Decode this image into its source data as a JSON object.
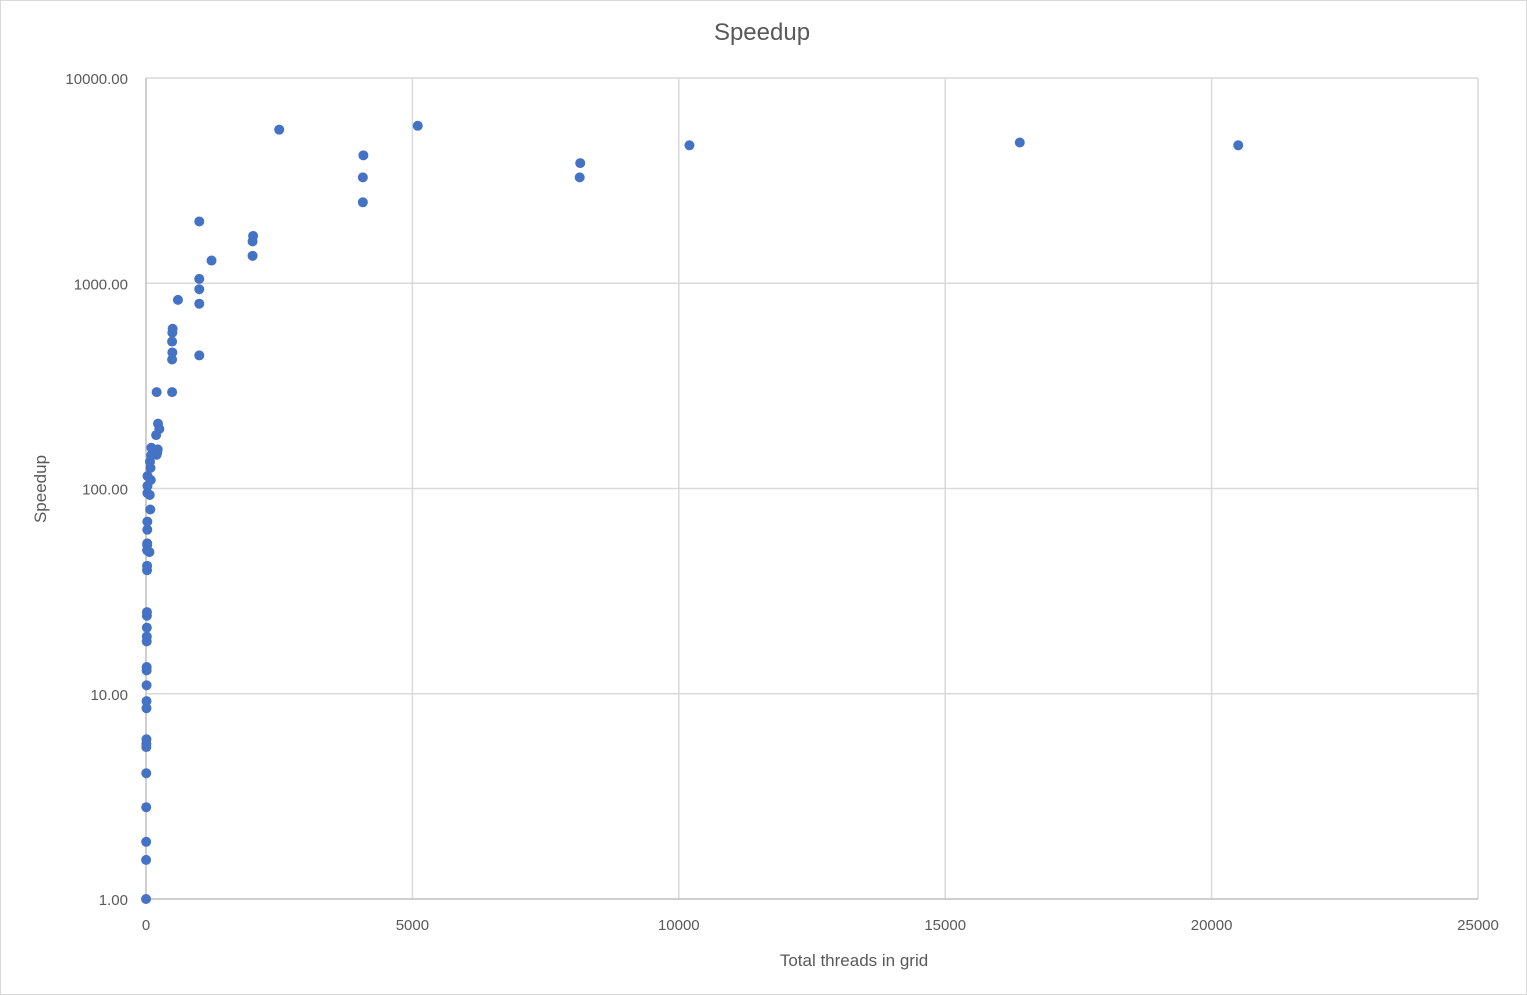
{
  "chart_data": {
    "type": "scatter",
    "title": "Speedup",
    "xlabel": "Total threads in grid",
    "ylabel": "Speedup",
    "xlim": [
      0,
      25000
    ],
    "ylim": [
      1,
      10000
    ],
    "y_scale": "log",
    "x_ticks": [
      "0",
      "5000",
      "10000",
      "15000",
      "20000",
      "25000"
    ],
    "y_ticks": [
      "1.00",
      "10.00",
      "100.00",
      "1000.00",
      "10000.00"
    ],
    "grid": true,
    "marker_color": "#4472C4",
    "series": [
      {
        "points": [
          [
            1,
            1.0
          ],
          [
            2,
            1.55
          ],
          [
            3,
            1.9
          ],
          [
            4,
            2.8
          ],
          [
            5,
            4.1
          ],
          [
            6,
            5.5
          ],
          [
            7,
            5.7
          ],
          [
            8,
            6.0
          ],
          [
            9,
            8.5
          ],
          [
            10,
            9.2
          ],
          [
            11,
            11.0
          ],
          [
            12,
            13.0
          ],
          [
            13,
            13.5
          ],
          [
            14,
            18.0
          ],
          [
            15,
            19.0
          ],
          [
            16,
            21.0
          ],
          [
            17,
            24.0
          ],
          [
            18,
            25.0
          ],
          [
            19,
            40.0
          ],
          [
            20,
            42.0
          ],
          [
            21,
            50.0
          ],
          [
            22,
            53.0
          ],
          [
            23,
            54.0
          ],
          [
            24,
            63.0
          ],
          [
            25,
            69.0
          ],
          [
            26,
            95.0
          ],
          [
            27,
            103.0
          ],
          [
            28,
            115.0
          ],
          [
            64,
            49.0
          ],
          [
            80,
            79.0
          ],
          [
            70,
            93.0
          ],
          [
            90,
            110.0
          ],
          [
            85,
            126.0
          ],
          [
            75,
            135.0
          ],
          [
            95,
            145.0
          ],
          [
            100,
            158.0
          ],
          [
            200,
            146.0
          ],
          [
            210,
            150.0
          ],
          [
            220,
            155.0
          ],
          [
            190,
            182.0
          ],
          [
            225,
            207.0
          ],
          [
            250,
            195.0
          ],
          [
            200,
            295.0
          ],
          [
            490,
            295.0
          ],
          [
            490,
            425.0
          ],
          [
            495,
            460.0
          ],
          [
            490,
            520.0
          ],
          [
            495,
            575.0
          ],
          [
            500,
            600.0
          ],
          [
            600,
            830.0
          ],
          [
            1000,
            445.0
          ],
          [
            1000,
            795.0
          ],
          [
            1000,
            935.0
          ],
          [
            1000,
            1050.0
          ],
          [
            1000,
            2000.0
          ],
          [
            1230,
            1290.0
          ],
          [
            2000,
            1360.0
          ],
          [
            2000,
            1600.0
          ],
          [
            2010,
            1700.0
          ],
          [
            2500,
            5600.0
          ],
          [
            4070,
            2480.0
          ],
          [
            4070,
            3280.0
          ],
          [
            4080,
            4200.0
          ],
          [
            5100,
            5850.0
          ],
          [
            8140,
            3280.0
          ],
          [
            8150,
            3850.0
          ],
          [
            10200,
            4700.0
          ],
          [
            16400,
            4850.0
          ],
          [
            20500,
            4700.0
          ]
        ]
      }
    ]
  }
}
